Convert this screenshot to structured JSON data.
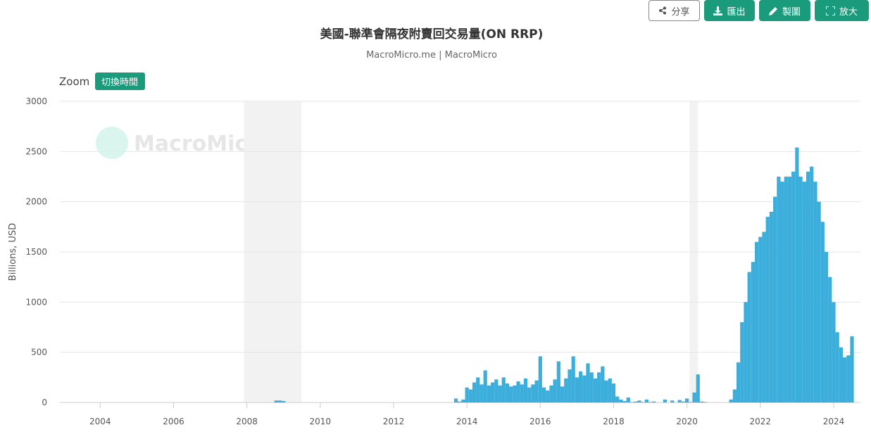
{
  "toolbar": {
    "share": "分享",
    "export": "匯出",
    "draw": "製圖",
    "enlarge": "放大"
  },
  "zoom": {
    "label": "Zoom",
    "button": "切換時間"
  },
  "watermark": "MacroMicro",
  "chart_data": {
    "type": "bar",
    "title": "美國-聯準會隔夜附賣回交易量(ON RRP)",
    "subtitle": "MacroMicro.me | MacroMicro",
    "y_label": "Billions, USD",
    "color": "#3baedb",
    "grid": true,
    "xlim": [
      2002.9,
      2024.73
    ],
    "ylim": [
      0,
      3000
    ],
    "xticks": [
      2004,
      2006,
      2008,
      2010,
      2012,
      2014,
      2016,
      2018,
      2020,
      2022,
      2024
    ],
    "yticks": [
      0,
      500,
      1000,
      1500,
      2000,
      2500,
      3000
    ],
    "recessions": [
      [
        2007.92,
        2009.49
      ],
      [
        2020.07,
        2020.3
      ]
    ],
    "x": [
      2008.8,
      2008.9,
      2009.0,
      2013.7,
      2013.8,
      2013.9,
      2014.0,
      2014.1,
      2014.2,
      2014.3,
      2014.4,
      2014.5,
      2014.6,
      2014.7,
      2014.8,
      2014.9,
      2015.0,
      2015.1,
      2015.2,
      2015.3,
      2015.4,
      2015.5,
      2015.6,
      2015.7,
      2015.8,
      2015.9,
      2016.0,
      2016.1,
      2016.2,
      2016.3,
      2016.4,
      2016.5,
      2016.6,
      2016.7,
      2016.8,
      2016.9,
      2017.0,
      2017.1,
      2017.2,
      2017.3,
      2017.4,
      2017.5,
      2017.6,
      2017.7,
      2017.8,
      2017.9,
      2018.0,
      2018.1,
      2018.2,
      2018.3,
      2018.4,
      2018.5,
      2018.6,
      2018.7,
      2018.8,
      2018.9,
      2019.0,
      2019.1,
      2019.4,
      2019.6,
      2019.8,
      2019.9,
      2020.0,
      2020.1,
      2020.2,
      2020.3,
      2020.4,
      2020.5,
      2021.2,
      2021.3,
      2021.4,
      2021.5,
      2021.6,
      2021.7,
      2021.8,
      2021.9,
      2022.0,
      2022.1,
      2022.2,
      2022.3,
      2022.4,
      2022.5,
      2022.6,
      2022.7,
      2022.8,
      2022.9,
      2023.0,
      2023.1,
      2023.2,
      2023.3,
      2023.4,
      2023.5,
      2023.6,
      2023.7,
      2023.8,
      2023.9,
      2024.0,
      2024.1,
      2024.2,
      2024.3,
      2024.4,
      2024.5
    ],
    "values": [
      20,
      20,
      15,
      40,
      10,
      30,
      150,
      130,
      200,
      250,
      180,
      320,
      170,
      200,
      230,
      170,
      250,
      190,
      160,
      170,
      210,
      180,
      240,
      150,
      180,
      220,
      460,
      150,
      120,
      170,
      230,
      410,
      160,
      240,
      330,
      460,
      250,
      310,
      270,
      390,
      300,
      240,
      300,
      360,
      220,
      240,
      190,
      60,
      30,
      15,
      50,
      5,
      10,
      20,
      5,
      30,
      5,
      10,
      30,
      20,
      25,
      10,
      40,
      5,
      100,
      280,
      10,
      5,
      30,
      130,
      400,
      800,
      1000,
      1300,
      1400,
      1600,
      1650,
      1700,
      1850,
      1900,
      2050,
      2250,
      2200,
      2250,
      2250,
      2300,
      2540,
      2250,
      2200,
      2300,
      2350,
      2200,
      2000,
      1800,
      1500,
      1250,
      1000,
      700,
      550,
      450,
      470,
      660
    ]
  }
}
